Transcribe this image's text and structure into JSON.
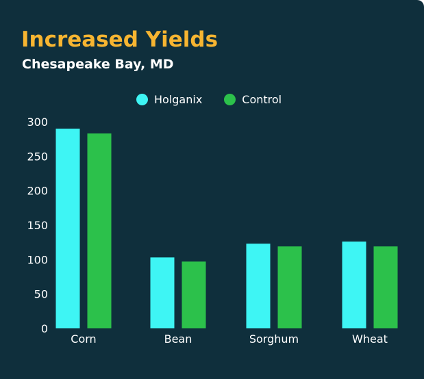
{
  "title": "Increased Yields",
  "subtitle": "Chesapeake Bay, MD",
  "colors": {
    "background": "#0f2f3c",
    "title": "#f7b531",
    "text": "#ffffff",
    "holganix": "#3ef5f4",
    "control": "#2cc14b"
  },
  "chart_data": {
    "type": "bar",
    "title": "Increased Yields",
    "subtitle": "Chesapeake Bay, MD",
    "categories": [
      "Corn",
      "Bean",
      "Sorghum",
      "Wheat"
    ],
    "series": [
      {
        "name": "Holganix",
        "color": "#3ef5f4",
        "values": [
          290,
          103,
          123,
          126
        ]
      },
      {
        "name": "Control",
        "color": "#2cc14b",
        "values": [
          283,
          97,
          119,
          119
        ]
      }
    ],
    "ylim": [
      0,
      300
    ],
    "yticks": [
      "0",
      "50",
      "100",
      "150",
      "200",
      "250",
      "300"
    ],
    "xlabel": "",
    "ylabel": "",
    "grid": false,
    "legend": "top-center"
  }
}
